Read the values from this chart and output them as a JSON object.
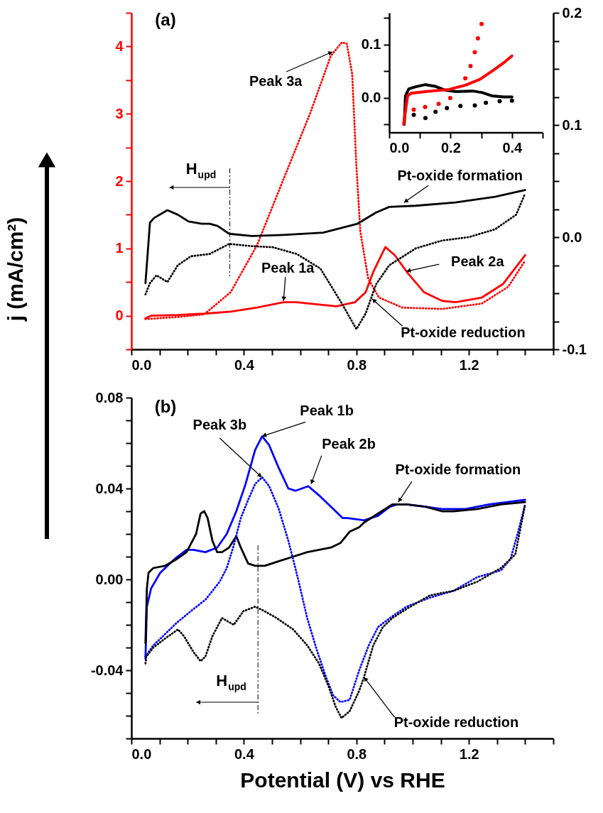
{
  "chart_data": [
    {
      "type": "line",
      "title": "(a)",
      "xlim": [
        0,
        1.5
      ],
      "xticks": [
        {
          "value": 0,
          "label": "0.0"
        },
        {
          "value": 0.1,
          "label": null
        },
        {
          "value": 0.2,
          "label": null
        },
        {
          "value": 0.3,
          "label": null
        },
        0.4,
        {
          "value": 0.5,
          "label": null
        },
        {
          "value": 0.6,
          "label": null
        },
        {
          "value": 0.7,
          "label": null
        },
        0.8,
        {
          "value": 0.9,
          "label": null
        },
        {
          "value": 1.0,
          "label": null
        },
        {
          "value": 1.1,
          "label": null
        },
        1.2,
        {
          "value": 1.3,
          "label": null
        },
        {
          "value": 1.4,
          "label": null
        },
        {
          "value": 1.5,
          "label": null
        }
      ],
      "ylim": [
        -0.5,
        4.5
      ],
      "yticks": [
        {
          "value": -0.5,
          "label": null
        },
        0,
        {
          "value": 0.5,
          "label": null
        },
        1,
        {
          "value": 1.5,
          "label": null
        },
        2,
        {
          "value": 2.5,
          "label": null
        },
        3,
        {
          "value": 3.5,
          "label": null
        },
        4,
        {
          "value": 4.5,
          "label": null
        }
      ],
      "y2lim": [
        -0.1,
        0.2
      ],
      "y2ticks": [
        -0.1,
        {
          "value": -0.075,
          "label": null
        },
        {
          "value": -0.05,
          "label": null
        },
        {
          "value": -0.025,
          "label": null
        },
        {
          "value": 0,
          "label": "0.0"
        },
        {
          "value": 0.025,
          "label": null
        },
        {
          "value": 0.05,
          "label": null
        },
        {
          "value": 0.075,
          "label": null
        },
        0.1,
        {
          "value": 0.125,
          "label": null
        },
        {
          "value": 0.15,
          "label": null
        },
        {
          "value": 0.175,
          "label": null
        },
        0.2
      ],
      "series": [
        {
          "color": "#ff0000",
          "line_style": "solid",
          "x": [
            0.05,
            0.071,
            0.165,
            0.259,
            0.353,
            0.447,
            0.541,
            0.588,
            0.635,
            0.729,
            0.795,
            0.833,
            0.861,
            0.903,
            0.936,
            0.983,
            1.04,
            1.105,
            1.152,
            1.246,
            1.321,
            1.4
          ],
          "values": [
            -0.04,
            0.0,
            0.01,
            0.03,
            0.06,
            0.12,
            0.2,
            0.2,
            0.18,
            0.14,
            0.2,
            0.35,
            0.66,
            1.02,
            0.9,
            0.63,
            0.35,
            0.22,
            0.2,
            0.27,
            0.47,
            0.9
          ]
        },
        {
          "color": "#ff0000",
          "line_style": "dotted",
          "x": [
            0.05,
            0.165,
            0.259,
            0.353,
            0.447,
            0.541,
            0.635,
            0.709,
            0.748,
            0.766,
            0.785,
            0.8,
            0.814,
            0.842,
            0.88,
            0.964,
            1.105,
            1.246,
            1.34,
            1.4
          ],
          "values": [
            -0.05,
            -0.02,
            0.02,
            0.35,
            1.05,
            2.03,
            3.0,
            3.86,
            4.06,
            4.04,
            3.59,
            2.22,
            1.25,
            0.55,
            0.27,
            0.12,
            0.1,
            0.18,
            0.43,
            0.82
          ]
        },
        {
          "color": "#000000",
          "line_style": "solid",
          "axis": "y2",
          "x": [
            0.05,
            0.066,
            0.08,
            0.128,
            0.165,
            0.203,
            0.25,
            0.278,
            0.306,
            0.348,
            0.428,
            0.541,
            0.682,
            0.804,
            0.87,
            0.917,
            1.011,
            1.152,
            1.293,
            1.4
          ],
          "values": [
            -0.041,
            0.013,
            0.017,
            0.024,
            0.02,
            0.014,
            0.012,
            0.012,
            0.01,
            0.003,
            0.001,
            0.002,
            0.004,
            0.012,
            0.022,
            0.027,
            0.028,
            0.031,
            0.036,
            0.042
          ]
        },
        {
          "color": "#000000",
          "line_style": "dotted",
          "axis": "y2",
          "x": [
            0.05,
            0.066,
            0.089,
            0.128,
            0.165,
            0.212,
            0.278,
            0.348,
            0.428,
            0.503,
            0.588,
            0.672,
            0.748,
            0.8,
            0.833,
            0.87,
            0.917,
            1.011,
            1.105,
            1.199,
            1.293,
            1.368,
            1.4
          ],
          "values": [
            -0.051,
            -0.041,
            -0.034,
            -0.04,
            -0.025,
            -0.017,
            -0.015,
            -0.006,
            -0.008,
            -0.009,
            -0.015,
            -0.028,
            -0.059,
            -0.082,
            -0.068,
            -0.042,
            -0.025,
            -0.01,
            -0.003,
            0.0,
            0.007,
            0.02,
            0.039
          ]
        }
      ],
      "ref_lines": [
        {
          "axis": "x",
          "value": 0.35,
          "label": "H$_{upd}$",
          "line_style": "dashed",
          "color": "#000000"
        }
      ],
      "annotations": [
        {
          "text": "Peak 3a",
          "x": 0.715,
          "y": 3.92
        },
        {
          "text": "Pt-oxide formation",
          "x": 0.969,
          "y": 1.68
        },
        {
          "text": "Peak 1a",
          "x": 0.541,
          "y": 0.22
        },
        {
          "text": "Peak 2a",
          "x": 0.978,
          "y": 0.66
        },
        {
          "text": "Pt-oxide reduction",
          "x": 0.856,
          "y": 0.25
        }
      ]
    },
    {
      "type": "line",
      "xlim": [
        0,
        0.5
      ],
      "xticks": [
        {
          "value": 0,
          "label": "0.0"
        },
        {
          "value": 0.1,
          "label": null
        },
        0.2,
        {
          "value": 0.3,
          "label": null
        },
        0.4,
        {
          "value": 0.5,
          "label": null
        }
      ],
      "ylim": [
        -0.065,
        0.16
      ],
      "yticks": [
        {
          "value": -0.05,
          "label": null
        },
        {
          "value": 0,
          "label": "0.0"
        },
        {
          "value": 0.05,
          "label": null
        },
        0.1,
        {
          "value": 0.15,
          "label": null
        }
      ],
      "series": [
        {
          "color": "#000000",
          "line_style": "solid",
          "x": [
            0.049,
            0.053,
            0.064,
            0.087,
            0.118,
            0.149,
            0.18,
            0.218,
            0.272,
            0.303,
            0.334,
            0.373,
            0.4
          ],
          "values": [
            -0.05,
            0.004,
            0.017,
            0.021,
            0.025,
            0.022,
            0.015,
            0.012,
            0.013,
            0.01,
            0.004,
            0.002,
            0.002
          ]
        },
        {
          "color": "#ff0000",
          "line_style": "solid",
          "x": [
            0.047,
            0.06,
            0.072,
            0.118,
            0.195,
            0.249,
            0.296,
            0.342,
            0.373,
            0.4
          ],
          "values": [
            -0.05,
            0.004,
            0.009,
            0.012,
            0.016,
            0.024,
            0.035,
            0.053,
            0.066,
            0.079
          ]
        },
        {
          "type": "scatter",
          "marker": "circle",
          "color": "#ff0000",
          "x": [
            0.08,
            0.117,
            0.161,
            0.199,
            0.248,
            0.265,
            0.279,
            0.289,
            0.301
          ],
          "values": [
            -0.022,
            -0.017,
            -0.011,
            0.0,
            0.037,
            0.06,
            0.086,
            0.112,
            0.139
          ]
        },
        {
          "type": "scatter",
          "marker": "circle",
          "color": "#000000",
          "x": [
            0.08,
            0.118,
            0.151,
            0.188,
            0.232,
            0.279,
            0.315,
            0.36,
            0.4
          ],
          "values": [
            -0.032,
            -0.038,
            -0.026,
            -0.019,
            -0.015,
            -0.014,
            -0.009,
            -0.006,
            -0.005
          ]
        }
      ]
    },
    {
      "type": "line",
      "title": "(b)",
      "xlabel": "Potential (V) vs RHE",
      "ylabel": "j (mA/cm²)",
      "xlim": [
        0,
        1.5
      ],
      "xticks": [
        {
          "value": 0,
          "label": "0.0"
        },
        {
          "value": 0.1,
          "label": null
        },
        {
          "value": 0.2,
          "label": null
        },
        {
          "value": 0.3,
          "label": null
        },
        0.4,
        {
          "value": 0.5,
          "label": null
        },
        {
          "value": 0.6,
          "label": null
        },
        {
          "value": 0.7,
          "label": null
        },
        0.8,
        {
          "value": 0.9,
          "label": null
        },
        {
          "value": 1.0,
          "label": null
        },
        {
          "value": 1.1,
          "label": null
        },
        1.2,
        {
          "value": 1.3,
          "label": null
        },
        {
          "value": 1.4,
          "label": null
        },
        {
          "value": 1.5,
          "label": null
        }
      ],
      "ylim": [
        -0.07,
        0.08
      ],
      "yticks": [
        {
          "value": -0.07,
          "label": null
        },
        {
          "value": -0.06,
          "label": null
        },
        {
          "value": -0.05,
          "label": null
        },
        -0.04,
        {
          "value": -0.03,
          "label": null
        },
        {
          "value": -0.02,
          "label": null
        },
        {
          "value": -0.01,
          "label": null
        },
        {
          "value": 0,
          "label": "0.00"
        },
        {
          "value": 0.01,
          "label": null
        },
        {
          "value": 0.02,
          "label": null
        },
        {
          "value": 0.03,
          "label": null
        },
        0.04,
        {
          "value": 0.05,
          "label": null
        },
        {
          "value": 0.06,
          "label": null
        },
        {
          "value": 0.07,
          "label": null
        },
        0.08
      ],
      "series": [
        {
          "color": "#0000ff",
          "line_style": "solid",
          "x": [
            0.05,
            0.055,
            0.07,
            0.103,
            0.154,
            0.196,
            0.221,
            0.263,
            0.305,
            0.339,
            0.373,
            0.406,
            0.44,
            0.465,
            0.49,
            0.524,
            0.558,
            0.583,
            0.629,
            0.667,
            0.709,
            0.751,
            0.768,
            0.827,
            0.877,
            0.919,
            0.945,
            0.978,
            1.045,
            1.104,
            1.146,
            1.188,
            1.272,
            1.4
          ],
          "values": [
            -0.035,
            -0.012,
            -0.004,
            0.003,
            0.009,
            0.013,
            0.013,
            0.012,
            0.014,
            0.02,
            0.03,
            0.042,
            0.057,
            0.063,
            0.059,
            0.049,
            0.04,
            0.039,
            0.041,
            0.037,
            0.032,
            0.027,
            0.027,
            0.026,
            0.028,
            0.032,
            0.033,
            0.033,
            0.032,
            0.031,
            0.031,
            0.031,
            0.033,
            0.035
          ]
        },
        {
          "color": "#000000",
          "line_style": "solid",
          "x": [
            0.05,
            0.055,
            0.061,
            0.078,
            0.12,
            0.162,
            0.196,
            0.23,
            0.246,
            0.259,
            0.271,
            0.288,
            0.305,
            0.322,
            0.347,
            0.373,
            0.389,
            0.415,
            0.44,
            0.474,
            0.524,
            0.575,
            0.625,
            0.667,
            0.709,
            0.743,
            0.776,
            0.81,
            0.827,
            0.877,
            0.928,
            0.978,
            1.045,
            1.104,
            1.146,
            1.23,
            1.314,
            1.4
          ],
          "values": [
            -0.028,
            -0.004,
            0.003,
            0.005,
            0.006,
            0.009,
            0.012,
            0.02,
            0.029,
            0.03,
            0.027,
            0.017,
            0.012,
            0.012,
            0.014,
            0.019,
            0.014,
            0.007,
            0.006,
            0.006,
            0.008,
            0.01,
            0.012,
            0.013,
            0.014,
            0.016,
            0.021,
            0.023,
            0.025,
            0.029,
            0.033,
            0.033,
            0.032,
            0.03,
            0.03,
            0.031,
            0.033,
            0.034
          ]
        },
        {
          "color": "#0000ff",
          "line_style": "dotted",
          "x": [
            0.05,
            0.078,
            0.112,
            0.162,
            0.221,
            0.263,
            0.314,
            0.339,
            0.364,
            0.389,
            0.415,
            0.44,
            0.465,
            0.49,
            0.524,
            0.558,
            0.591,
            0.625,
            0.659,
            0.692,
            0.717,
            0.743,
            0.776,
            0.81,
            0.844,
            0.877,
            0.919,
            0.978,
            1.062,
            1.146,
            1.23,
            1.314,
            1.348,
            1.373,
            1.4
          ],
          "values": [
            -0.034,
            -0.029,
            -0.025,
            -0.019,
            -0.013,
            -0.009,
            -0.001,
            0.005,
            0.015,
            0.027,
            0.035,
            0.042,
            0.045,
            0.041,
            0.031,
            0.017,
            0.001,
            -0.017,
            -0.031,
            -0.043,
            -0.051,
            -0.054,
            -0.053,
            -0.04,
            -0.029,
            -0.021,
            -0.017,
            -0.012,
            -0.008,
            -0.005,
            0.001,
            0.004,
            0.009,
            0.02,
            0.033
          ]
        },
        {
          "color": "#000000",
          "line_style": "dotted",
          "x": [
            0.05,
            0.053,
            0.078,
            0.12,
            0.166,
            0.187,
            0.221,
            0.246,
            0.263,
            0.288,
            0.322,
            0.364,
            0.398,
            0.44,
            0.474,
            0.516,
            0.575,
            0.625,
            0.667,
            0.701,
            0.726,
            0.747,
            0.776,
            0.81,
            0.827,
            0.86,
            0.894,
            0.928,
            0.978,
            1.062,
            1.146,
            1.23,
            1.314,
            1.365,
            1.4
          ],
          "values": [
            -0.037,
            -0.034,
            -0.03,
            -0.026,
            -0.022,
            -0.025,
            -0.032,
            -0.036,
            -0.034,
            -0.025,
            -0.017,
            -0.02,
            -0.014,
            -0.012,
            -0.014,
            -0.017,
            -0.022,
            -0.029,
            -0.037,
            -0.047,
            -0.056,
            -0.061,
            -0.058,
            -0.049,
            -0.043,
            -0.029,
            -0.021,
            -0.017,
            -0.013,
            -0.007,
            -0.005,
            -0.001,
            0.005,
            0.011,
            0.033
          ]
        }
      ],
      "ref_lines": [
        {
          "axis": "x",
          "value": 0.45,
          "label": "H$_{upd}$",
          "line_style": "dashed",
          "color": "#000000"
        }
      ],
      "annotations": [
        {
          "text": "Peak 1b",
          "x": 0.465,
          "y": 0.063
        },
        {
          "text": "Peak 3b",
          "x": 0.463,
          "y": 0.045
        },
        {
          "text": "Peak 2b",
          "x": 0.639,
          "y": 0.042
        },
        {
          "text": "Pt-oxide formation",
          "x": 0.949,
          "y": 0.034
        },
        {
          "text": "Pt-oxide reduction",
          "x": 0.827,
          "y": -0.043
        }
      ]
    }
  ]
}
